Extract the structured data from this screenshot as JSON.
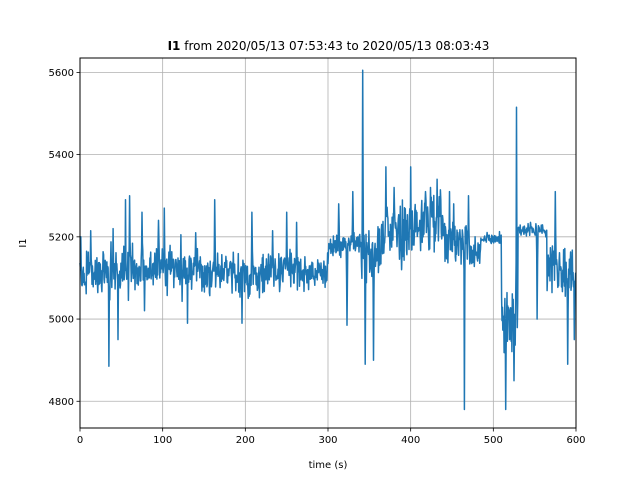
{
  "chart_data": {
    "type": "line",
    "title": {
      "bold": "I1",
      "rest": " from 2020/05/13 07:53:43 to 2020/05/13 08:03:43"
    },
    "xlabel": "time (s)",
    "ylabel": "I1",
    "xlim": [
      0,
      600
    ],
    "ylim": [
      4735,
      5635
    ],
    "grid": true,
    "x_ticks": [
      0,
      100,
      200,
      300,
      400,
      500,
      600
    ],
    "y_ticks": [
      4800,
      5000,
      5200,
      5400,
      5600
    ],
    "series": [
      {
        "name": "",
        "color": "#1f77b4",
        "segments": [
          {
            "x": [
              0,
              30
            ],
            "mean": 5110,
            "amp": 55
          },
          {
            "x": [
              30,
              60
            ],
            "mean": 5115,
            "amp": 70
          },
          {
            "x": [
              60,
              120
            ],
            "mean": 5120,
            "amp": 60
          },
          {
            "x": [
              120,
              200
            ],
            "mean": 5115,
            "amp": 55
          },
          {
            "x": [
              200,
              250
            ],
            "mean": 5110,
            "amp": 55
          },
          {
            "x": [
              250,
              300
            ],
            "mean": 5115,
            "amp": 45
          },
          {
            "x": [
              300,
              320
            ],
            "mean": 5175,
            "amp": 30
          },
          {
            "x": [
              320,
              340
            ],
            "mean": 5180,
            "amp": 35
          },
          {
            "x": [
              340,
              370
            ],
            "mean": 5170,
            "amp": 80
          },
          {
            "x": [
              370,
              400
            ],
            "mean": 5210,
            "amp": 80
          },
          {
            "x": [
              400,
              440
            ],
            "mean": 5230,
            "amp": 80
          },
          {
            "x": [
              440,
              470
            ],
            "mean": 5190,
            "amp": 60
          },
          {
            "x": [
              470,
              485
            ],
            "mean": 5150,
            "amp": 40
          },
          {
            "x": [
              485,
              510
            ],
            "mean": 5195,
            "amp": 15
          },
          {
            "x": [
              510,
              530
            ],
            "mean": 5000,
            "amp": 80
          },
          {
            "x": [
              530,
              565
            ],
            "mean": 5215,
            "amp": 15
          },
          {
            "x": [
              565,
              600
            ],
            "mean": 5120,
            "amp": 70
          }
        ],
        "spikes": [
          {
            "x": 1,
            "y": 5200
          },
          {
            "x": 13,
            "y": 5215
          },
          {
            "x": 35,
            "y": 4885
          },
          {
            "x": 40,
            "y": 5220
          },
          {
            "x": 46,
            "y": 4950
          },
          {
            "x": 55,
            "y": 5290
          },
          {
            "x": 60,
            "y": 5300
          },
          {
            "x": 75,
            "y": 5260
          },
          {
            "x": 78,
            "y": 5020
          },
          {
            "x": 95,
            "y": 5240
          },
          {
            "x": 102,
            "y": 5270
          },
          {
            "x": 122,
            "y": 5205
          },
          {
            "x": 130,
            "y": 4990
          },
          {
            "x": 140,
            "y": 5210
          },
          {
            "x": 163,
            "y": 5290
          },
          {
            "x": 182,
            "y": 5140
          },
          {
            "x": 196,
            "y": 4990
          },
          {
            "x": 208,
            "y": 5260
          },
          {
            "x": 233,
            "y": 5215
          },
          {
            "x": 250,
            "y": 5260
          },
          {
            "x": 262,
            "y": 5235
          },
          {
            "x": 300,
            "y": 5135
          },
          {
            "x": 313,
            "y": 5280
          },
          {
            "x": 323,
            "y": 4985
          },
          {
            "x": 330,
            "y": 5310
          },
          {
            "x": 342,
            "y": 5605
          },
          {
            "x": 345,
            "y": 4890
          },
          {
            "x": 352,
            "y": 5170
          },
          {
            "x": 355,
            "y": 4900
          },
          {
            "x": 365,
            "y": 5230
          },
          {
            "x": 370,
            "y": 5370
          },
          {
            "x": 380,
            "y": 5320
          },
          {
            "x": 389,
            "y": 5120
          },
          {
            "x": 393,
            "y": 5250
          },
          {
            "x": 400,
            "y": 5370
          },
          {
            "x": 404,
            "y": 5180
          },
          {
            "x": 418,
            "y": 5310
          },
          {
            "x": 424,
            "y": 5320
          },
          {
            "x": 432,
            "y": 5340
          },
          {
            "x": 440,
            "y": 5220
          },
          {
            "x": 447,
            "y": 5310
          },
          {
            "x": 452,
            "y": 5280
          },
          {
            "x": 465,
            "y": 4780
          },
          {
            "x": 470,
            "y": 5300
          },
          {
            "x": 478,
            "y": 5200
          },
          {
            "x": 515,
            "y": 4780
          },
          {
            "x": 518,
            "y": 5000
          },
          {
            "x": 525,
            "y": 4850
          },
          {
            "x": 528,
            "y": 5515
          },
          {
            "x": 531,
            "y": 5220
          },
          {
            "x": 545,
            "y": 5235
          },
          {
            "x": 553,
            "y": 5000
          },
          {
            "x": 575,
            "y": 5310
          },
          {
            "x": 590,
            "y": 4890
          },
          {
            "x": 598,
            "y": 4950
          }
        ]
      }
    ]
  }
}
